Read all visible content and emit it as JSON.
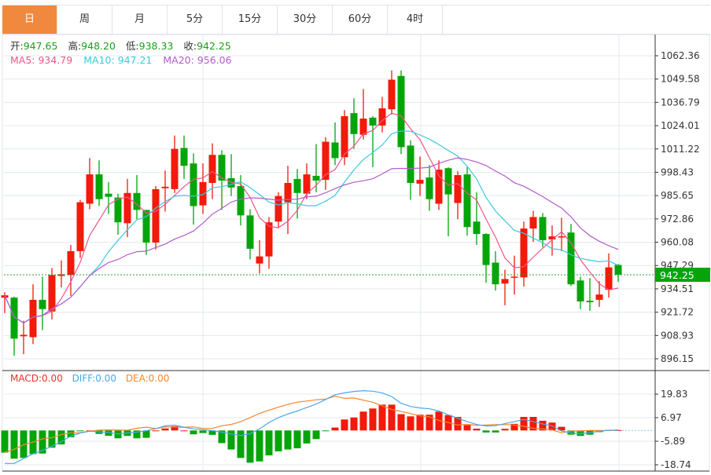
{
  "tabs": [
    "日",
    "周",
    "月",
    "5分",
    "15分",
    "30分",
    "60分",
    "4时"
  ],
  "active_tab": 0,
  "ohlc_info": {
    "open_label": "开:",
    "open": "947.65",
    "high_label": "高:",
    "high": "948.20",
    "low_label": "低:",
    "low": "938.33",
    "close_label": "收:",
    "close": "942.25"
  },
  "ma_info": {
    "ma5": "MA5: 934.79",
    "ma10": "MA10: 947.21",
    "ma20": "MA20: 956.06"
  },
  "macd_info": {
    "macd": "MACD:0.00",
    "diff": "DIFF:0.00",
    "dea": "DEA:0.00"
  },
  "current_price": "942.25",
  "colors": {
    "up": "#f21a0a",
    "down": "#05a50a",
    "ma5": "#f0558a",
    "ma10": "#3cc8de",
    "ma20": "#b45ccc",
    "diff": "#4aa8e8",
    "dea": "#f5862c",
    "tab_active": "#f0893e"
  },
  "chart_data": {
    "type": "candlestick",
    "price_axis_ticks": [
      "1062.36",
      "1049.58",
      "1036.79",
      "1024.01",
      "1011.22",
      "998.43",
      "985.65",
      "972.86",
      "960.08",
      "947.29",
      "934.51",
      "921.72",
      "908.93",
      "896.15"
    ],
    "ylim": [
      896.15,
      1062.36
    ],
    "candles": [
      [
        929.7,
        932.7,
        921.2,
        931.0
      ],
      [
        929.7,
        930.2,
        897.8,
        907.2
      ],
      [
        908.5,
        917.0,
        898.7,
        909.3
      ],
      [
        908.0,
        937.0,
        904.2,
        928.5
      ],
      [
        928.5,
        941.2,
        911.9,
        923.4
      ],
      [
        922.1,
        945.9,
        917.8,
        942.1
      ],
      [
        941.6,
        950.1,
        935.3,
        942.5
      ],
      [
        942.1,
        958.6,
        930.6,
        955.2
      ],
      [
        955.2,
        983.3,
        951.4,
        982.0
      ],
      [
        981.2,
        1006.2,
        978.2,
        997.3
      ],
      [
        997.3,
        1005.0,
        979.9,
        983.7
      ],
      [
        986.7,
        993.1,
        975.6,
        985.0
      ],
      [
        984.6,
        986.7,
        964.2,
        971.0
      ],
      [
        970.5,
        994.8,
        962.9,
        987.1
      ],
      [
        987.1,
        996.9,
        972.7,
        977.8
      ],
      [
        977.8,
        977.8,
        953.1,
        959.9
      ],
      [
        959.9,
        990.9,
        956.1,
        989.2
      ],
      [
        989.7,
        999.4,
        976.9,
        990.5
      ],
      [
        989.2,
        1018.6,
        987.1,
        1011.3
      ],
      [
        1011.8,
        1018.6,
        994.8,
        1002.0
      ],
      [
        1003.3,
        1008.8,
        969.7,
        979.9
      ],
      [
        980.3,
        1003.3,
        975.6,
        993.1
      ],
      [
        992.6,
        1014.3,
        983.7,
        1008.0
      ],
      [
        1008.0,
        1010.5,
        977.8,
        993.9
      ],
      [
        995.2,
        1008.4,
        985.4,
        990.1
      ],
      [
        990.9,
        996.9,
        969.3,
        974.8
      ],
      [
        974.8,
        978.2,
        950.6,
        956.5
      ],
      [
        948.4,
        961.2,
        942.9,
        952.3
      ],
      [
        952.3,
        973.9,
        945.5,
        971.0
      ],
      [
        971.4,
        987.5,
        968.0,
        985.4
      ],
      [
        982.0,
        1002.0,
        964.6,
        992.6
      ],
      [
        994.8,
        1000.3,
        973.1,
        987.1
      ],
      [
        986.7,
        1003.3,
        983.7,
        997.3
      ],
      [
        996.5,
        1013.9,
        987.5,
        993.9
      ],
      [
        994.3,
        1017.7,
        988.8,
        1015.2
      ],
      [
        1014.8,
        1025.8,
        1002.4,
        1006.2
      ],
      [
        1006.7,
        1032.6,
        1002.4,
        1029.2
      ],
      [
        1030.9,
        1039.0,
        1011.3,
        1019.4
      ],
      [
        1019.0,
        1044.1,
        1016.5,
        1027.9
      ],
      [
        1028.4,
        1029.2,
        1001.2,
        1024.1
      ],
      [
        1024.1,
        1039.8,
        1020.3,
        1033.5
      ],
      [
        1033.0,
        1054.3,
        1030.1,
        1049.2
      ],
      [
        1051.3,
        1054.3,
        1008.4,
        1012.2
      ],
      [
        1013.1,
        1016.0,
        983.3,
        992.6
      ],
      [
        992.2,
        1007.1,
        985.4,
        994.3
      ],
      [
        995.6,
        1002.4,
        977.3,
        983.7
      ],
      [
        981.2,
        1005.0,
        977.8,
        999.9
      ],
      [
        1000.7,
        1001.2,
        963.3,
        986.3
      ],
      [
        981.6,
        999.0,
        972.7,
        996.9
      ],
      [
        997.3,
        1001.2,
        963.7,
        968.4
      ],
      [
        971.4,
        987.5,
        958.6,
        964.6
      ],
      [
        964.6,
        965.0,
        937.8,
        947.6
      ],
      [
        948.9,
        955.2,
        933.6,
        937.0
      ],
      [
        937.4,
        945.0,
        925.5,
        939.9
      ],
      [
        940.8,
        952.7,
        931.4,
        941.2
      ],
      [
        940.8,
        971.4,
        935.7,
        967.6
      ],
      [
        967.6,
        977.3,
        960.3,
        973.9
      ],
      [
        973.9,
        976.1,
        957.4,
        961.2
      ],
      [
        961.6,
        969.3,
        952.7,
        963.3
      ],
      [
        962.9,
        973.5,
        955.2,
        963.3
      ],
      [
        965.4,
        970.1,
        936.1,
        937.0
      ],
      [
        939.1,
        941.2,
        923.4,
        927.6
      ],
      [
        928.0,
        940.4,
        922.5,
        927.2
      ],
      [
        928.5,
        938.7,
        924.6,
        931.4
      ],
      [
        934.0,
        954.0,
        929.7,
        946.3
      ],
      [
        947.65,
        948.2,
        938.33,
        942.25
      ]
    ],
    "candle_format": "[open, high, low, close]",
    "ma_periods": [
      5,
      10,
      20
    ],
    "macd": {
      "axis_ticks": [
        "19.83",
        "6.97",
        "-5.89",
        "-18.74"
      ],
      "ylim": [
        -18.74,
        19.83
      ],
      "hist": [
        -12.1,
        -15.4,
        -15,
        -12.9,
        -12.6,
        -9.4,
        -7.6,
        -3.7,
        -0.4,
        0,
        -1.9,
        -2.9,
        -4.3,
        -3,
        -4.3,
        -4,
        0,
        1.1,
        2.3,
        0,
        -2.1,
        -1.4,
        -2.4,
        -6.9,
        -10.4,
        -15,
        -17.6,
        -16.9,
        -13.6,
        -11.4,
        -10.4,
        -9.7,
        -7.1,
        -4.7,
        -0.4,
        1.6,
        6,
        7.1,
        10.3,
        12,
        14.1,
        14.1,
        8.9,
        7.7,
        8.6,
        8.6,
        10.3,
        8.4,
        7.4,
        2.9,
        1,
        -1.1,
        -1.1,
        0.9,
        3.6,
        7.4,
        7.4,
        5.3,
        4.3,
        2,
        -2.3,
        -3,
        -2.3,
        -0.9,
        0.3,
        0.2
      ],
      "diff": [
        -18,
        -18,
        -15.3,
        -12.8,
        -10.9,
        -8.6,
        -6.1,
        -3.1,
        -1.4,
        -0.4,
        -0.8,
        -1.1,
        -1.9,
        -1.4,
        -0.9,
        -0.2,
        1.0,
        2.5,
        2.9,
        1.8,
        0.9,
        0.4,
        -0.1,
        -0.9,
        -1.9,
        -2.7,
        -1.8,
        0.9,
        4.3,
        7.0,
        9.0,
        10.6,
        12.5,
        14.4,
        16.9,
        19.5,
        20.5,
        21.3,
        21.7,
        21.4,
        20.5,
        18.5,
        14.8,
        13.1,
        12.3,
        11.8,
        10.6,
        8.5,
        6.7,
        4.8,
        3.3,
        2.4,
        2.6,
        3.7,
        4.8,
        6.0,
        4.8,
        3.5,
        2.5,
        -0.3,
        -1.4,
        -1.8,
        -1.1,
        -0.5,
        0.1,
        0.3
      ]
    }
  }
}
